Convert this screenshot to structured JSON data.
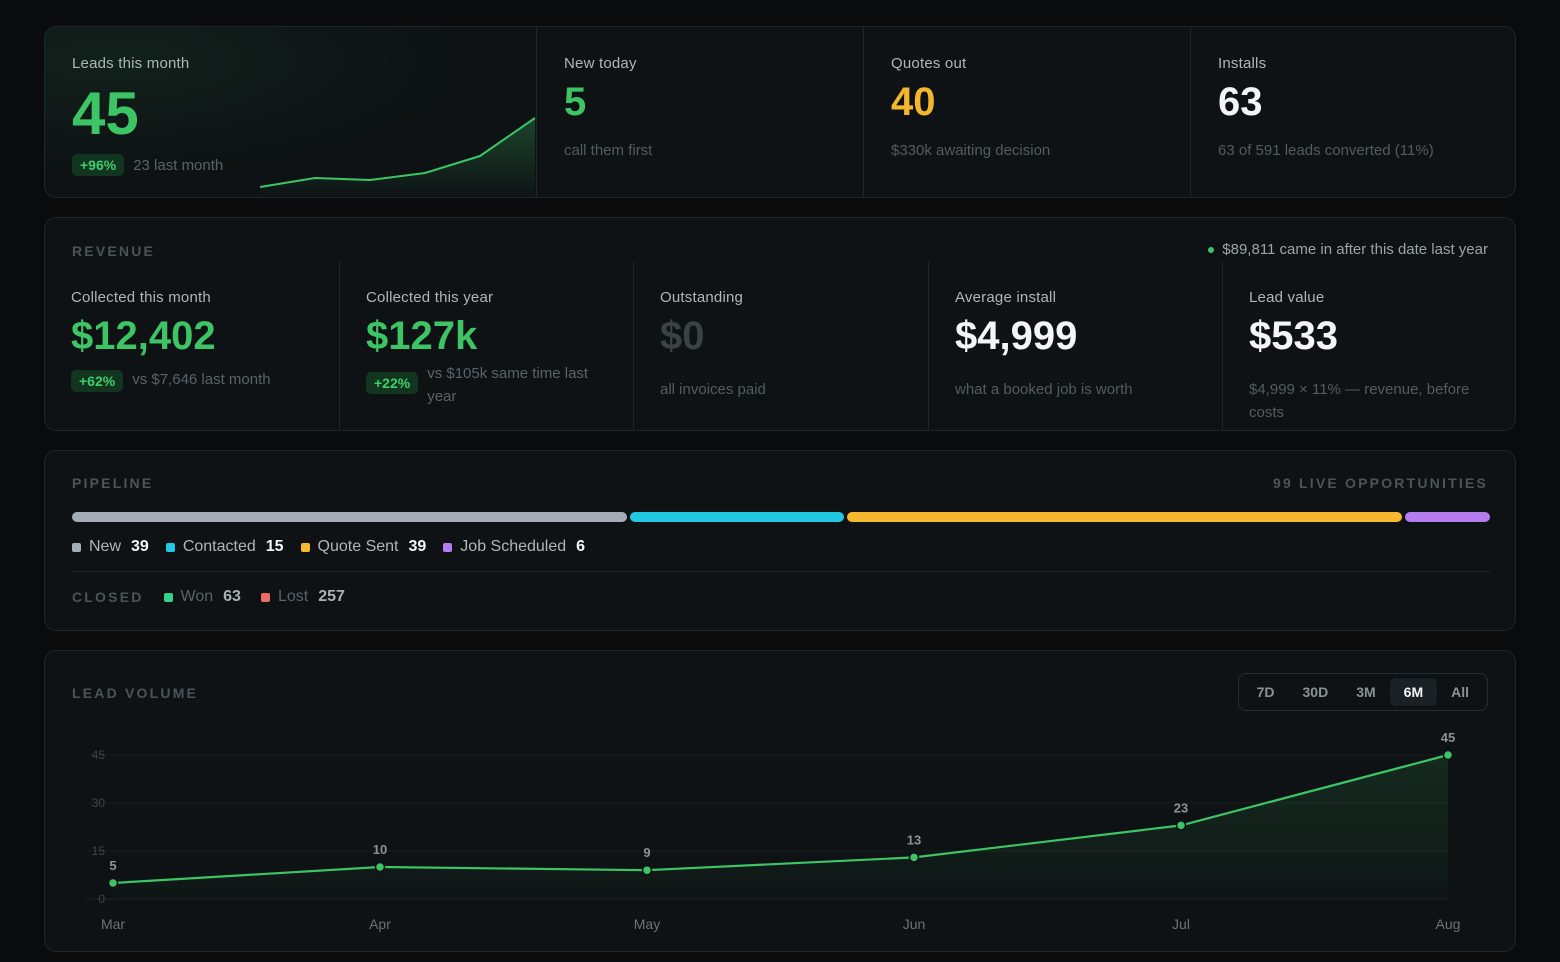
{
  "top_stats": {
    "leads": {
      "label": "Leads this month",
      "value": "45",
      "delta": "+96%",
      "delta_text": "23 last month"
    },
    "new_today": {
      "label": "New today",
      "value": "5",
      "sub": "call them first"
    },
    "quotes": {
      "label": "Quotes out",
      "value": "40",
      "sub": "$330k awaiting decision"
    },
    "installs": {
      "label": "Installs",
      "value": "63",
      "sub": "63 of 591 leads converted (11%)"
    }
  },
  "revenue": {
    "title": "REVENUE",
    "note": "$89,811 came in after this date last year",
    "items": [
      {
        "label": "Collected this month",
        "value": "$12,402",
        "delta": "+62%",
        "delta_text": "vs $7,646 last month"
      },
      {
        "label": "Collected this year",
        "value": "$127k",
        "delta": "+22%",
        "delta_text": "vs $105k same time last year"
      },
      {
        "label": "Outstanding",
        "value": "$0",
        "sub": "all invoices paid"
      },
      {
        "label": "Average install",
        "value": "$4,999",
        "sub": "what a booked job is worth"
      },
      {
        "label": "Lead value",
        "value": "$533",
        "sub": "$4,999 × 11% — revenue, before costs"
      }
    ]
  },
  "pipeline": {
    "title": "PIPELINE",
    "live_count": "99 LIVE OPPORTUNITIES",
    "stages": [
      {
        "name": "New",
        "count": 39,
        "color": "#a4adb6"
      },
      {
        "name": "Contacted",
        "count": 15,
        "color": "#22c8e3"
      },
      {
        "name": "Quote Sent",
        "count": 39,
        "color": "#f5b82e"
      },
      {
        "name": "Job Scheduled",
        "count": 6,
        "color": "#b57cf0"
      }
    ],
    "closed_label": "CLOSED",
    "closed": [
      {
        "name": "Won",
        "count": 63,
        "color": "#34d28a"
      },
      {
        "name": "Lost",
        "count": 257,
        "color": "#f06a6a"
      }
    ]
  },
  "lead_volume": {
    "title": "LEAD VOLUME",
    "ranges": [
      "7D",
      "30D",
      "3M",
      "6M",
      "All"
    ],
    "active_range": "6M"
  },
  "colors": {
    "accent": "#3dc565",
    "amber": "#f2b72c"
  },
  "chart_data": {
    "type": "area",
    "categories": [
      "Mar",
      "Apr",
      "May",
      "Jun",
      "Jul",
      "Aug"
    ],
    "values": [
      5,
      10,
      9,
      13,
      23,
      45
    ],
    "yticks": [
      0,
      15,
      30,
      45
    ],
    "ylim": [
      0,
      45
    ],
    "grid": true,
    "xlabel": "",
    "ylabel": ""
  }
}
